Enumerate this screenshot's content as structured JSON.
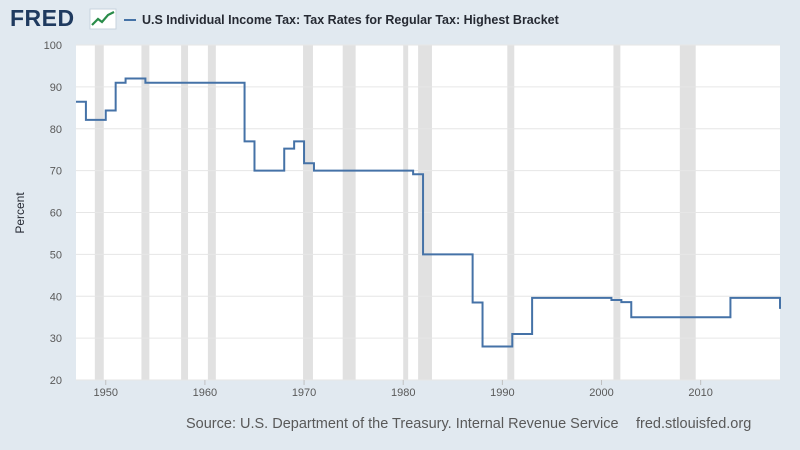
{
  "header": {
    "logo_text": "FRED",
    "logo_icon": "trend-chart-icon",
    "series_title": "U.S Individual Income Tax: Tax Rates for Regular Tax: Highest Bracket"
  },
  "footer": {
    "source": "Source: U.S. Department of the Treasury. Internal Revenue Service",
    "site": "fred.stlouisfed.org"
  },
  "colors": {
    "background": "#e1e9f0",
    "plot": "#ffffff",
    "line": "#4572a7",
    "recession": "#e1e1e1",
    "grid": "#e6e6e6"
  },
  "chart_data": {
    "type": "line",
    "step": true,
    "title": "U.S Individual Income Tax: Tax Rates for Regular Tax: Highest Bracket",
    "xlabel": "",
    "ylabel": "Percent",
    "xlim": [
      1947,
      2018
    ],
    "ylim": [
      20,
      100
    ],
    "yticks": [
      20,
      30,
      40,
      50,
      60,
      70,
      80,
      90,
      100
    ],
    "xticks": [
      1950,
      1960,
      1970,
      1980,
      1990,
      2000,
      2010
    ],
    "grid": true,
    "legend": "top-left",
    "recessions": [
      [
        1948.9,
        1949.8
      ],
      [
        1953.6,
        1954.4
      ],
      [
        1957.6,
        1958.3
      ],
      [
        1960.3,
        1961.1
      ],
      [
        1969.9,
        1970.9
      ],
      [
        1973.9,
        1975.2
      ],
      [
        1980.0,
        1980.5
      ],
      [
        1981.5,
        1982.9
      ],
      [
        1990.5,
        1991.2
      ],
      [
        2001.2,
        2001.9
      ],
      [
        2007.9,
        2009.5
      ]
    ],
    "series": [
      {
        "name": "U.S Individual Income Tax: Tax Rates for Regular Tax: Highest Bracket",
        "x": [
          1947,
          1948,
          1950,
          1951,
          1952,
          1954,
          1964,
          1965,
          1968,
          1969,
          1970,
          1971,
          1981,
          1982,
          1987,
          1988,
          1991,
          1993,
          2001,
          2002,
          2003,
          2013,
          2018
        ],
        "values": [
          86.45,
          82.13,
          84.36,
          91.0,
          92.0,
          91.0,
          77.0,
          70.0,
          75.25,
          77.0,
          71.75,
          70.0,
          69.13,
          50.0,
          38.5,
          28.0,
          31.0,
          39.6,
          39.1,
          38.6,
          35.0,
          39.6,
          37.0
        ]
      }
    ]
  }
}
